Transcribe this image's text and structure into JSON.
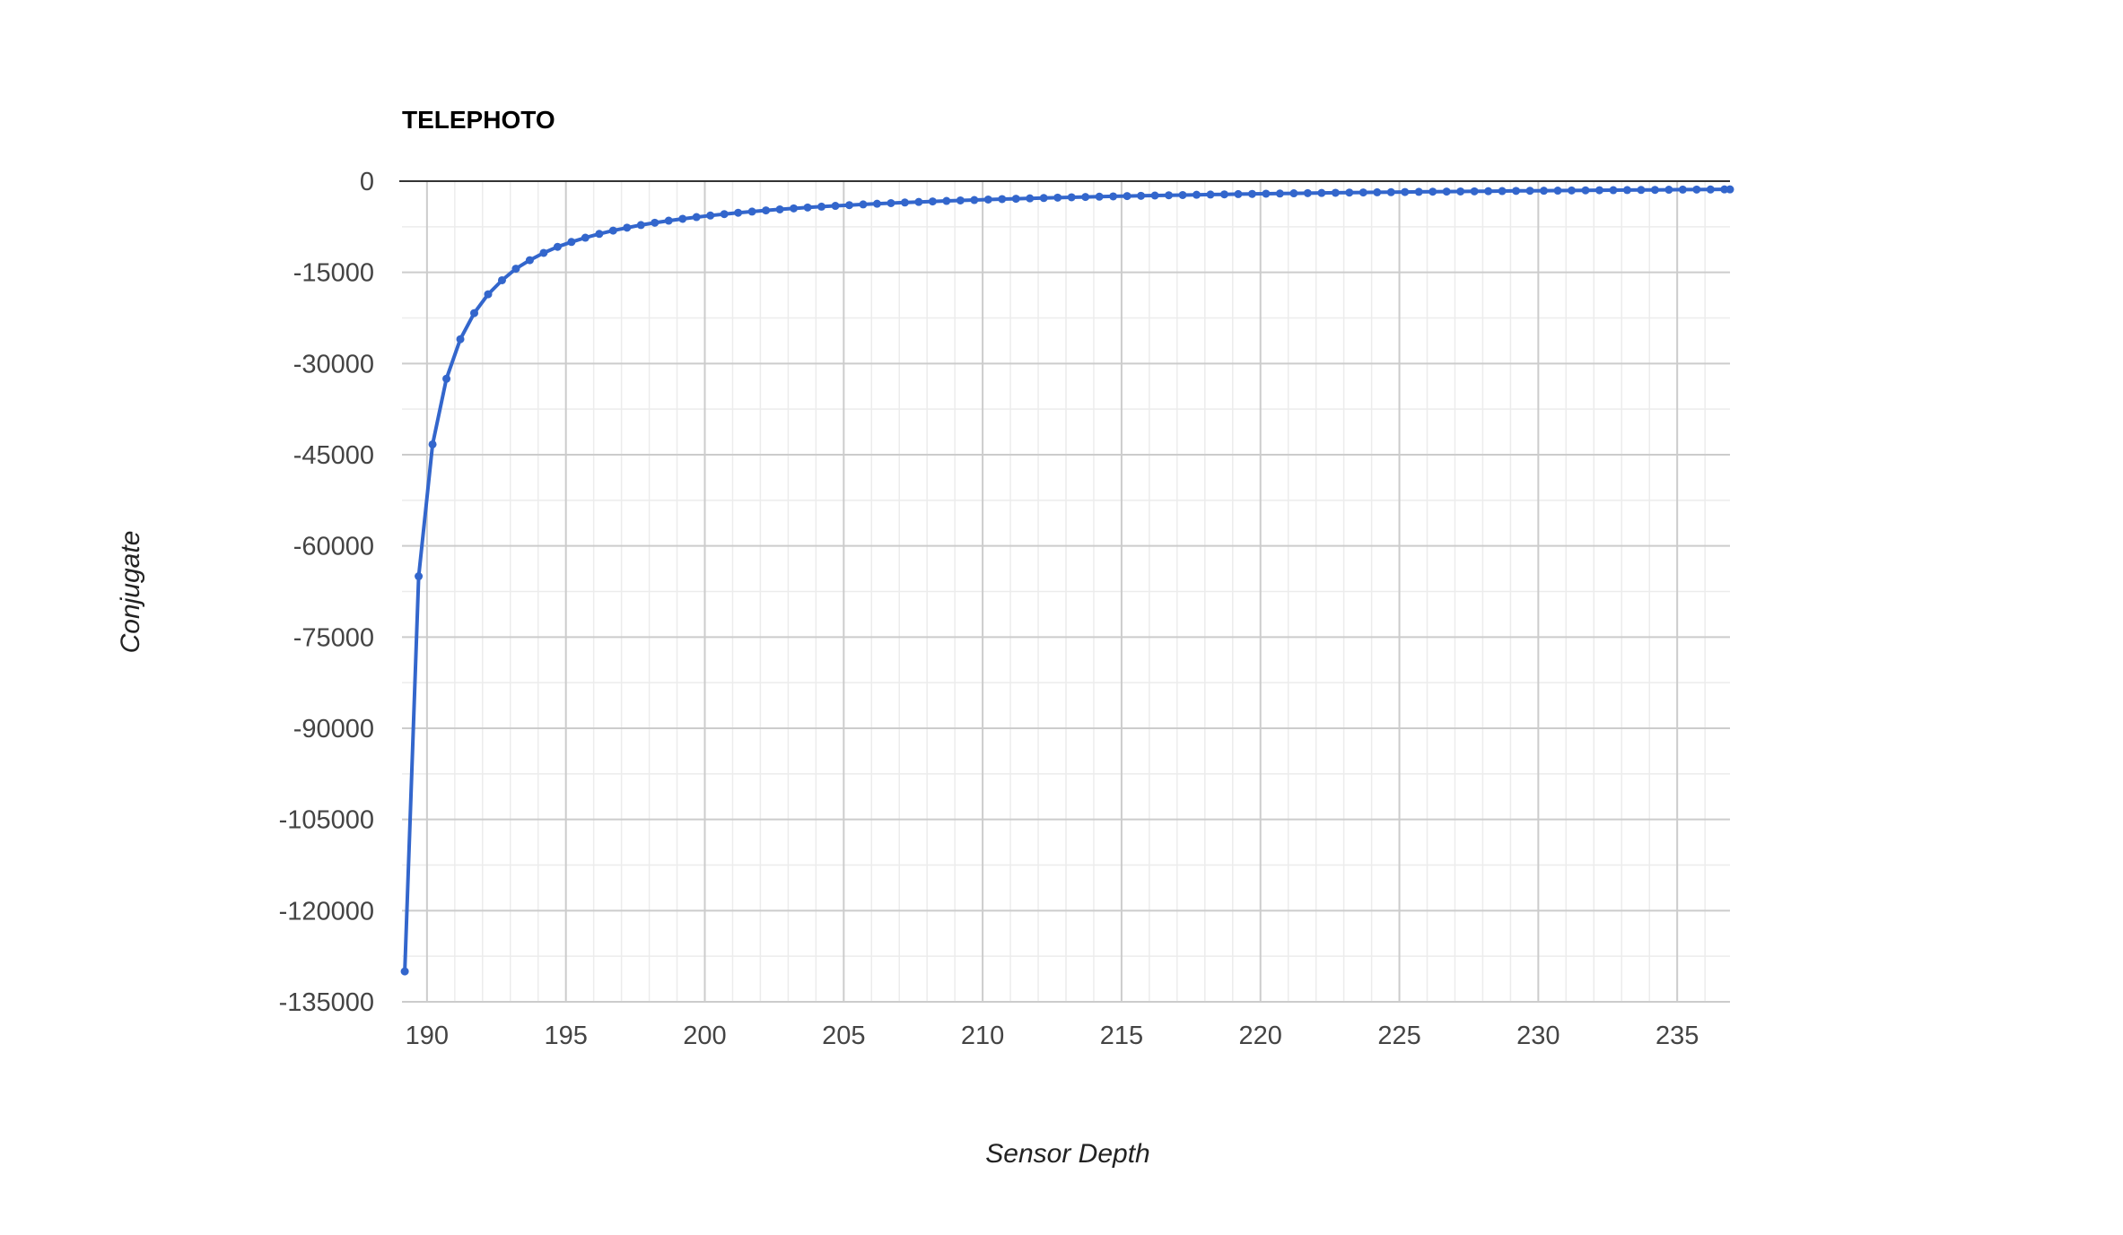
{
  "chart_data": {
    "type": "line",
    "title": "TELEPHOTO",
    "xlabel": "Sensor Depth",
    "ylabel": "Conjugate",
    "xlim": [
      189.1,
      236.9
    ],
    "ylim": [
      -135000,
      0
    ],
    "x_ticks": [
      190,
      195,
      200,
      205,
      210,
      215,
      220,
      225,
      230,
      235
    ],
    "y_ticks": [
      0,
      -15000,
      -30000,
      -45000,
      -60000,
      -75000,
      -90000,
      -105000,
      -120000,
      -135000
    ],
    "x_tick_labels": [
      "190",
      "195",
      "200",
      "205",
      "210",
      "215",
      "220",
      "225",
      "230",
      "235"
    ],
    "y_tick_labels": [
      "0",
      "-15000",
      "-30000",
      "-45000",
      "-60000",
      "-75000",
      "-90000",
      "-105000",
      "-120000",
      "-135000"
    ],
    "grid": true,
    "legend": "none",
    "series": [
      {
        "color": "#3366cc",
        "x": [
          189.2,
          189.7,
          190.2,
          190.7,
          191.2,
          191.7,
          192.2,
          192.7,
          193.2,
          193.7,
          194.2,
          194.7,
          195.2,
          195.7,
          196.2,
          196.7,
          197.2,
          197.7,
          198.2,
          198.7,
          199.2,
          199.7,
          200.2,
          200.7,
          201.2,
          201.7,
          202.2,
          202.7,
          203.2,
          203.7,
          204.2,
          204.7,
          205.2,
          205.7,
          206.2,
          206.7,
          207.2,
          207.7,
          208.2,
          208.7,
          209.2,
          209.7,
          210.2,
          210.7,
          211.2,
          211.7,
          212.2,
          212.7,
          213.2,
          213.7,
          214.2,
          214.7,
          215.2,
          215.7,
          216.2,
          216.7,
          217.2,
          217.7,
          218.2,
          218.7,
          219.2,
          219.7,
          220.2,
          220.7,
          221.2,
          221.7,
          222.2,
          222.7,
          223.2,
          223.7,
          224.2,
          224.7,
          225.2,
          225.7,
          226.2,
          226.7,
          227.2,
          227.7,
          228.2,
          228.7,
          229.2,
          229.7,
          230.2,
          230.7,
          231.2,
          231.7,
          232.2,
          232.7,
          233.2,
          233.7,
          234.2,
          234.7,
          235.2,
          235.7,
          236.2,
          236.7,
          236.9
        ],
        "values": [
          -130000,
          -65000,
          -43300,
          -32500,
          -26000,
          -21700,
          -18600,
          -16300,
          -14400,
          -13000,
          -11800,
          -10800,
          -10000,
          -9300,
          -8670,
          -8130,
          -7650,
          -7220,
          -6840,
          -6500,
          -6190,
          -5910,
          -5650,
          -5420,
          -5200,
          -5000,
          -4810,
          -4640,
          -4480,
          -4330,
          -4190,
          -4060,
          -3940,
          -3820,
          -3710,
          -3610,
          -3510,
          -3420,
          -3330,
          -3250,
          -3170,
          -3100,
          -3020,
          -2950,
          -2890,
          -2830,
          -2770,
          -2710,
          -2650,
          -2600,
          -2550,
          -2500,
          -2450,
          -2410,
          -2360,
          -2320,
          -2280,
          -2240,
          -2200,
          -2170,
          -2130,
          -2100,
          -2060,
          -2030,
          -2000,
          -1970,
          -1940,
          -1910,
          -1880,
          -1860,
          -1830,
          -1810,
          -1780,
          -1760,
          -1730,
          -1710,
          -1690,
          -1670,
          -1650,
          -1630,
          -1600,
          -1580,
          -1570,
          -1550,
          -1530,
          -1510,
          -1490,
          -1480,
          -1460,
          -1440,
          -1430,
          -1410,
          -1390,
          -1380,
          -1370,
          -1350,
          -1350
        ]
      }
    ]
  }
}
